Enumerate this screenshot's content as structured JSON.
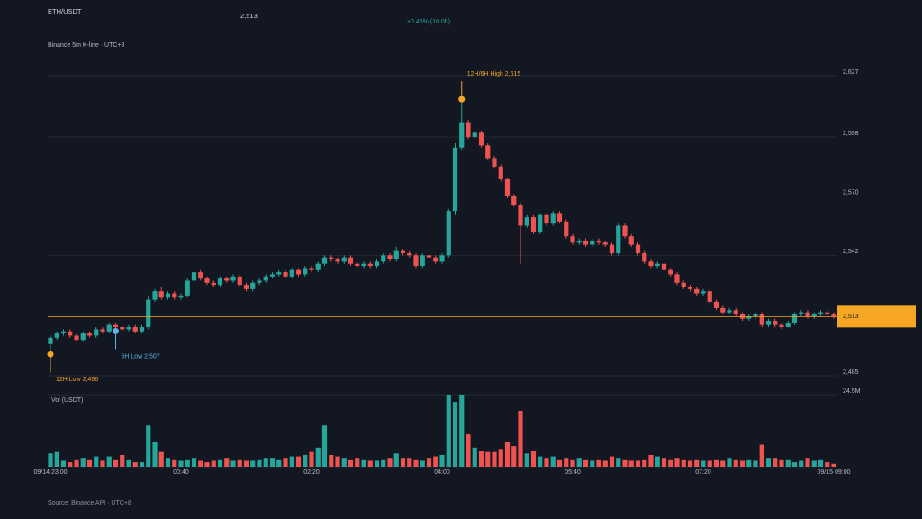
{
  "chart_data": {
    "type": "candlestick",
    "symbol": "ETH/USDT",
    "change": "+0.45% (10.0h)",
    "subtitle": "Binance 5m K-line · UTC+8",
    "source": "Source: Binance API · UTC+8",
    "volume_title": "Vol (USDT)",
    "current_price": {
      "value": 2513,
      "label": "2,513"
    },
    "up_color": "#26a69a",
    "down_color": "#ef5350",
    "price_line_color": "#f5a623",
    "grid": true,
    "categories": [
      "09/14 23:00",
      null,
      null,
      null,
      null,
      null,
      null,
      null,
      null,
      null,
      null,
      null,
      null,
      null,
      null,
      null,
      null,
      null,
      null,
      null,
      "00:40",
      null,
      null,
      null,
      null,
      null,
      null,
      null,
      null,
      null,
      null,
      null,
      null,
      null,
      null,
      null,
      null,
      null,
      null,
      null,
      "02:20",
      null,
      null,
      null,
      null,
      null,
      null,
      null,
      null,
      null,
      null,
      null,
      null,
      null,
      null,
      null,
      null,
      null,
      null,
      null,
      "04:00",
      null,
      null,
      null,
      null,
      null,
      null,
      null,
      null,
      null,
      null,
      null,
      null,
      null,
      null,
      null,
      null,
      null,
      null,
      null,
      "05:40",
      null,
      null,
      null,
      null,
      null,
      null,
      null,
      null,
      null,
      null,
      null,
      null,
      null,
      null,
      null,
      null,
      null,
      null,
      null,
      "07:20",
      null,
      null,
      null,
      null,
      null,
      null,
      null,
      null,
      null,
      null,
      null,
      null,
      null,
      null,
      null,
      null,
      null,
      null,
      null,
      "09/15 09:00"
    ],
    "open": [
      2500,
      2503,
      2505,
      2506,
      2504,
      2502,
      2505,
      2504,
      2507,
      2506,
      2509,
      2508,
      2507,
      2508,
      2506,
      2508,
      2521,
      2525,
      2522,
      2524,
      2522,
      2523,
      2530,
      2534,
      2531,
      2529,
      2528,
      2531,
      2530,
      2532,
      2528,
      2526,
      2529,
      2530,
      2532,
      2533,
      2534,
      2532,
      2535,
      2533,
      2536,
      2535,
      2538,
      2541,
      2540,
      2539,
      2541,
      2538,
      2537,
      2538,
      2537,
      2539,
      2542,
      2540,
      2544,
      2543,
      2542,
      2537,
      2542,
      2541,
      2539,
      2542,
      2563,
      2593,
      2605,
      2598,
      2600,
      2594,
      2588,
      2584,
      2578,
      2570,
      2566,
      2556,
      2560,
      2553,
      2561,
      2557,
      2562,
      2558,
      2551,
      2548,
      2549,
      2547,
      2549,
      2548,
      2547,
      2543,
      2556,
      2551,
      2547,
      2543,
      2539,
      2537,
      2538,
      2535,
      2533,
      2529,
      2527,
      2526,
      2524,
      2525,
      2520,
      2517,
      2515,
      2516,
      2514,
      2512,
      2513,
      2514,
      2509,
      2511,
      2509,
      2508,
      2510,
      2514,
      2515,
      2513,
      2514,
      2515,
      2514
    ],
    "high": [
      2504,
      2506,
      2507,
      2507,
      2505,
      2506,
      2506,
      2508,
      2508,
      2510,
      2510,
      2509,
      2509,
      2509,
      2509,
      2523,
      2526,
      2527,
      2525,
      2525,
      2524,
      2531,
      2536,
      2535,
      2532,
      2530,
      2532,
      2532,
      2533,
      2533,
      2529,
      2530,
      2531,
      2533,
      2534,
      2535,
      2535,
      2536,
      2536,
      2537,
      2537,
      2539,
      2542,
      2542,
      2541,
      2542,
      2542,
      2539,
      2539,
      2539,
      2540,
      2543,
      2543,
      2546,
      2545,
      2544,
      2543,
      2543,
      2543,
      2542,
      2543,
      2564,
      2595,
      2615,
      2606,
      2601,
      2601,
      2595,
      2589,
      2585,
      2579,
      2571,
      2567,
      2561,
      2561,
      2562,
      2562,
      2563,
      2563,
      2559,
      2552,
      2550,
      2550,
      2550,
      2550,
      2549,
      2548,
      2557,
      2557,
      2552,
      2548,
      2544,
      2540,
      2539,
      2539,
      2536,
      2534,
      2530,
      2528,
      2527,
      2526,
      2526,
      2521,
      2518,
      2517,
      2517,
      2515,
      2514,
      2515,
      2515,
      2512,
      2512,
      2510,
      2511,
      2515,
      2516,
      2516,
      2515,
      2516,
      2516,
      2515
    ],
    "low": [
      2496,
      2502,
      2504,
      2503,
      2501,
      2501,
      2503,
      2503,
      2505,
      2505,
      2507,
      2506,
      2506,
      2505,
      2505,
      2507,
      2520,
      2521,
      2521,
      2521,
      2521,
      2522,
      2529,
      2530,
      2528,
      2527,
      2527,
      2529,
      2529,
      2527,
      2525,
      2525,
      2528,
      2529,
      2531,
      2532,
      2531,
      2531,
      2532,
      2532,
      2534,
      2534,
      2537,
      2539,
      2538,
      2538,
      2537,
      2536,
      2536,
      2536,
      2536,
      2538,
      2539,
      2539,
      2542,
      2541,
      2536,
      2536,
      2540,
      2538,
      2538,
      2541,
      2561,
      2592,
      2597,
      2597,
      2593,
      2587,
      2583,
      2577,
      2569,
      2565,
      2538,
      2555,
      2552,
      2552,
      2556,
      2556,
      2557,
      2550,
      2547,
      2547,
      2546,
      2546,
      2547,
      2546,
      2542,
      2542,
      2550,
      2546,
      2542,
      2538,
      2536,
      2536,
      2534,
      2532,
      2528,
      2526,
      2525,
      2523,
      2523,
      2519,
      2516,
      2514,
      2514,
      2513,
      2511,
      2511,
      2512,
      2508,
      2508,
      2508,
      2507,
      2508,
      2509,
      2513,
      2512,
      2512,
      2513,
      2513,
      2512
    ],
    "close": [
      2503,
      2505,
      2506,
      2504,
      2502,
      2505,
      2504,
      2507,
      2506,
      2509,
      2508,
      2507,
      2508,
      2506,
      2508,
      2521,
      2525,
      2522,
      2524,
      2522,
      2523,
      2530,
      2534,
      2531,
      2529,
      2528,
      2531,
      2530,
      2532,
      2528,
      2526,
      2529,
      2530,
      2532,
      2533,
      2534,
      2532,
      2535,
      2533,
      2536,
      2535,
      2538,
      2541,
      2540,
      2539,
      2541,
      2538,
      2537,
      2538,
      2537,
      2539,
      2542,
      2540,
      2544,
      2543,
      2542,
      2537,
      2542,
      2541,
      2539,
      2542,
      2563,
      2593,
      2605,
      2598,
      2600,
      2594,
      2588,
      2584,
      2578,
      2570,
      2566,
      2556,
      2560,
      2553,
      2561,
      2557,
      2562,
      2558,
      2551,
      2548,
      2549,
      2547,
      2549,
      2548,
      2547,
      2543,
      2556,
      2551,
      2547,
      2543,
      2539,
      2537,
      2538,
      2535,
      2533,
      2529,
      2527,
      2526,
      2524,
      2525,
      2520,
      2517,
      2515,
      2516,
      2514,
      2512,
      2513,
      2514,
      2509,
      2511,
      2509,
      2508,
      2510,
      2514,
      2515,
      2513,
      2514,
      2515,
      2514,
      2513
    ],
    "volume": [
      4.5,
      5,
      2,
      1.5,
      2.5,
      3,
      2.5,
      3.5,
      2,
      3.5,
      2.5,
      4,
      2.5,
      1.5,
      1.5,
      14,
      8.5,
      5,
      3,
      2.5,
      2,
      2.5,
      3,
      2,
      1.5,
      2,
      2.5,
      3,
      2,
      2.5,
      2,
      2,
      2.5,
      3,
      3,
      2.5,
      3,
      3.5,
      3.5,
      4,
      5,
      6.5,
      14,
      4,
      3.5,
      3,
      2.5,
      3,
      2.5,
      2,
      2,
      2.5,
      3,
      4.5,
      3,
      3,
      2.5,
      2,
      3,
      3.5,
      4,
      24.5,
      22,
      24.5,
      11,
      6.5,
      5.5,
      5,
      5,
      6,
      8.5,
      7,
      19,
      4.5,
      5.5,
      3.5,
      3,
      3.5,
      2.5,
      3,
      2.5,
      3,
      2.5,
      2,
      2.5,
      2,
      3.5,
      3,
      2.5,
      2,
      2,
      2.5,
      4,
      3.5,
      3,
      2.5,
      3,
      2.5,
      2,
      2.5,
      2,
      2,
      2.5,
      2,
      3,
      2.5,
      2,
      2.5,
      2,
      7.5,
      3,
      3,
      2.5,
      2.5,
      1.5,
      2,
      3,
      2,
      2.5,
      1.5,
      1
    ],
    "ylim": [
      2485,
      2627
    ],
    "yticks": [
      {
        "value": 2485,
        "label": "2,485"
      },
      {
        "value": 2542,
        "label": "2,542"
      },
      {
        "value": 2570,
        "label": "2,570"
      },
      {
        "value": 2598,
        "label": "2,598"
      },
      {
        "value": 2627,
        "label": "2,627"
      }
    ],
    "vlim": [
      0,
      24.5
    ],
    "vticks": [
      {
        "value": 24.5,
        "label": "24.5M"
      }
    ],
    "annotations": [
      {
        "text": "12H/6H High 2,615",
        "value": 2615,
        "kind": "high",
        "color": "#f5a623"
      },
      {
        "text": "12H Low 2,496",
        "value": 2496,
        "kind": "low",
        "color": "#f5a623"
      },
      {
        "text": "6H Low 2,507",
        "value": 2507,
        "kind": "low",
        "color": "#5ab4e6"
      }
    ]
  }
}
